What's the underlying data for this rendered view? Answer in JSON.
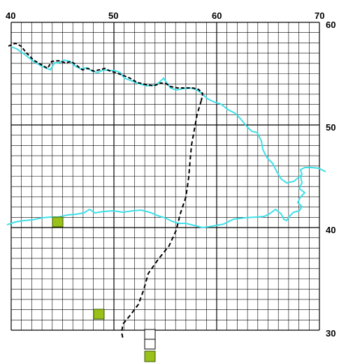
{
  "map": {
    "x_labels": [
      "40",
      "50",
      "60",
      "70"
    ],
    "y_labels": [
      "60",
      "50",
      "40",
      "30"
    ],
    "colors": {
      "grid": "#000000",
      "coastline": "#3ee0e8",
      "boundary": "#000000",
      "marker": "#99c11a",
      "marker_border": "#3b5a00"
    },
    "legend_icons": [
      "empty-box-icon",
      "filled-green-box-icon"
    ]
  }
}
